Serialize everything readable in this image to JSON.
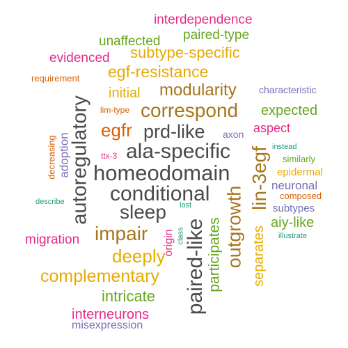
{
  "palette": {
    "dark_gray": "#4a4a4a",
    "orange": "#d95f02",
    "amber": "#e6ab02",
    "green": "#66a61e",
    "magenta": "#e7298a",
    "purple": "#7570b3",
    "teal": "#1b9e77",
    "brown": "#a6761d"
  },
  "words": {
    "interdependence": "interdependence",
    "paired_type": "paired-type",
    "unaffected": "unaffected",
    "subtype_specific": "subtype-specific",
    "evidenced": "evidenced",
    "egf_resistance": "egf-resistance",
    "requirement": "requirement",
    "modularity": "modularity",
    "characteristic": "characteristic",
    "initial": "initial",
    "lim_type": "lim-type",
    "correspond": "correspond",
    "expected": "expected",
    "egfr": "egfr",
    "prd_like": "prd-like",
    "aspect": "aspect",
    "axon": "axon",
    "ala_specific": "ala-specific",
    "instead": "instead",
    "ttx_3": "ttx-3",
    "similarly": "similarly",
    "homeodomain": "homeodomain",
    "epidermal": "epidermal",
    "conditional": "conditional",
    "neuronal": "neuronal",
    "composed": "composed",
    "describe": "describe",
    "lost": "lost",
    "sleep": "sleep",
    "subtypes": "subtypes",
    "aiy_like": "aiy-like",
    "impair": "impair",
    "illustrate": "illustrate",
    "migration": "migration",
    "class": "class",
    "deeply": "deeply",
    "complementary": "complementary",
    "intricate": "intricate",
    "interneurons": "interneurons",
    "misexpression": "misexpression",
    "autoregulatory": "autoregulatory",
    "decreasing": "decreasing",
    "adoption": "adoption",
    "paired_like": "paired-like",
    "outgrowth": "outgrowth",
    "lin_3egf": "lin-3egf",
    "participates": "participates",
    "separates": "separates",
    "origin": "origin"
  }
}
